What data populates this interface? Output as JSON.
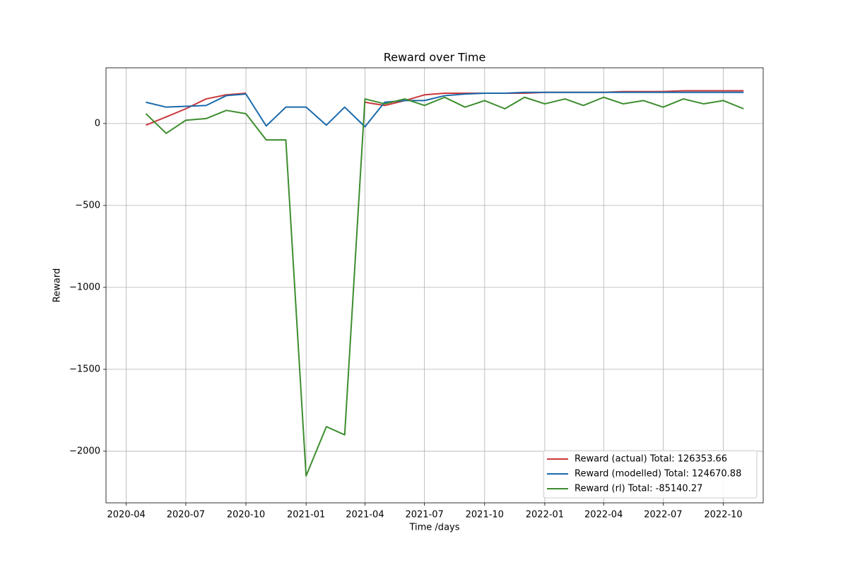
{
  "chart_data": {
    "type": "line",
    "title": "Reward over Time",
    "x_label": "Time /days",
    "y_label": "Reward",
    "x": [
      "2020-05",
      "2020-06",
      "2020-07",
      "2020-08",
      "2020-09",
      "2020-10",
      "2020-11",
      "2020-12",
      "2021-01",
      "2021-02",
      "2021-03",
      "2021-04",
      "2021-05",
      "2021-06",
      "2021-07",
      "2021-08",
      "2021-09",
      "2021-10",
      "2021-11",
      "2021-12",
      "2022-01",
      "2022-02",
      "2022-03",
      "2022-04",
      "2022-05",
      "2022-06",
      "2022-07",
      "2022-08",
      "2022-09",
      "2022-10",
      "2022-11"
    ],
    "series": [
      {
        "name": "Reward (actual) Total: 126353.66",
        "color": "#c9383b",
        "values": [
          -10,
          40,
          90,
          150,
          175,
          185,
          null,
          null,
          null,
          null,
          null,
          130,
          110,
          140,
          175,
          185,
          185,
          185,
          185,
          185,
          190,
          190,
          190,
          190,
          195,
          195,
          195,
          200,
          200,
          200,
          200
        ]
      },
      {
        "name": "Reward (modelled) Total: 124670.88",
        "color": "#1a6aab",
        "values": [
          130,
          100,
          105,
          110,
          170,
          180,
          -15,
          100,
          100,
          -10,
          100,
          -20,
          130,
          140,
          140,
          170,
          180,
          185,
          185,
          190,
          190,
          190,
          190,
          190,
          190,
          190,
          190,
          190,
          190,
          190,
          190
        ]
      },
      {
        "name": "Reward (rl) Total: -85140.27",
        "color": "#3c8d2e",
        "values": [
          60,
          -60,
          20,
          30,
          80,
          60,
          -100,
          -100,
          -2150,
          -1850,
          -1900,
          150,
          120,
          150,
          110,
          160,
          100,
          140,
          90,
          160,
          120,
          150,
          110,
          160,
          120,
          140,
          100,
          150,
          120,
          140,
          90
        ]
      }
    ],
    "xlim": [
      "2020-03",
      "2022-12"
    ],
    "xticks": [
      "2020-04",
      "2020-07",
      "2020-10",
      "2021-01",
      "2021-04",
      "2021-07",
      "2021-10",
      "2022-01",
      "2022-04",
      "2022-07",
      "2022-10"
    ],
    "ylim": [
      -2315,
      340
    ],
    "yticks": [
      {
        "value": -2000,
        "label": "−2000"
      },
      {
        "value": -1500,
        "label": "−1500"
      },
      {
        "value": -1000,
        "label": "−1000"
      },
      {
        "value": -500,
        "label": "−500"
      },
      0
    ],
    "grid": true,
    "legend": "lower right"
  }
}
